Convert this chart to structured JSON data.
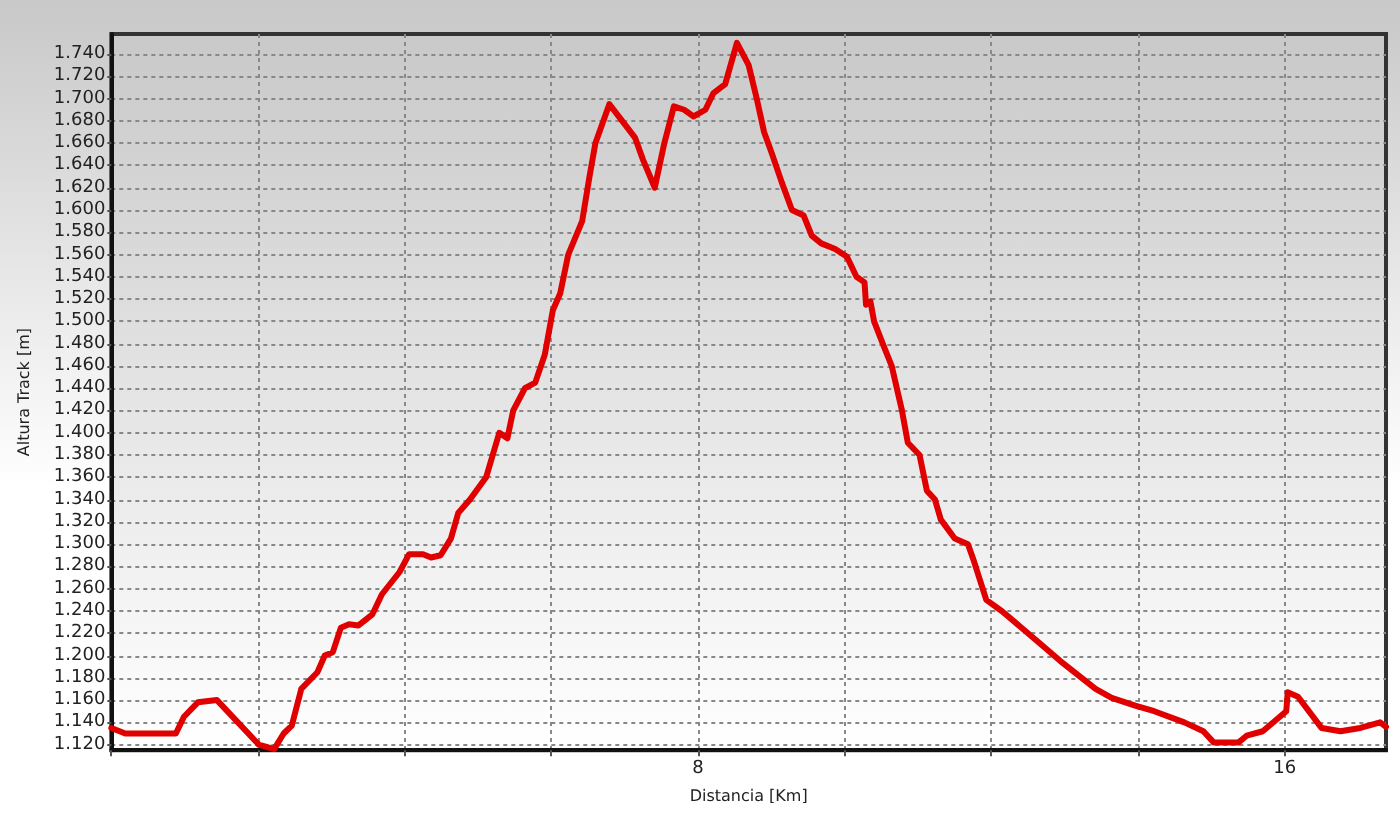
{
  "chart_data": {
    "type": "line",
    "xlabel": "Distancia [Km]",
    "ylabel": "Altura Track [m]",
    "x": [
      0,
      0.19,
      0.88,
      0.99,
      1.18,
      1.44,
      2.01,
      2.22,
      2.35,
      2.46,
      2.59,
      2.81,
      2.91,
      3.02,
      3.13,
      3.24,
      3.37,
      3.56,
      3.69,
      3.93,
      4.06,
      4.25,
      4.36,
      4.49,
      4.63,
      4.73,
      4.89,
      5.11,
      5.29,
      5.4,
      5.48,
      5.64,
      5.78,
      5.91,
      6.02,
      6.12,
      6.23,
      6.42,
      6.52,
      6.6,
      6.79,
      7.14,
      7.25,
      7.41,
      7.54,
      7.67,
      7.81,
      7.94,
      8.1,
      8.21,
      8.37,
      8.53,
      8.69,
      8.8,
      8.9,
      9.01,
      9.14,
      9.28,
      9.44,
      9.55,
      9.68,
      9.87,
      10.03,
      10.16,
      10.27,
      10.29,
      10.35,
      10.4,
      10.53,
      10.64,
      10.78,
      10.86,
      11.02,
      11.12,
      11.23,
      11.31,
      11.5,
      11.68,
      11.76,
      11.93,
      12.14,
      12.41,
      12.73,
      12.94,
      13.42,
      13.64,
      13.96,
      14.22,
      14.63,
      14.89,
      15.03,
      15.37,
      15.48,
      15.7,
      16.02,
      16.04,
      16.18,
      16.5,
      16.76,
      17.03,
      17.3,
      17.38
    ],
    "series": [
      {
        "color": "#e00000",
        "values": [
          1135,
          1130,
          1130,
          1145,
          1158,
          1160,
          1120,
          1116,
          1130,
          1137,
          1170,
          1185,
          1200,
          1203,
          1225,
          1228,
          1227,
          1237,
          1255,
          1275,
          1291,
          1291,
          1288,
          1290,
          1305,
          1328,
          1340,
          1360,
          1400,
          1395,
          1420,
          1440,
          1445,
          1470,
          1510,
          1525,
          1560,
          1590,
          1630,
          1660,
          1695,
          1665,
          1645,
          1620,
          1660,
          1693,
          1690,
          1684,
          1690,
          1705,
          1713,
          1750,
          1730,
          1700,
          1670,
          1650,
          1625,
          1600,
          1595,
          1577,
          1570,
          1565,
          1558,
          1540,
          1535,
          1515,
          1518,
          1500,
          1478,
          1460,
          1420,
          1391,
          1380,
          1348,
          1340,
          1322,
          1305,
          1300,
          1285,
          1250,
          1240,
          1225,
          1207,
          1195,
          1170,
          1162,
          1155,
          1150,
          1140,
          1132,
          1122,
          1122,
          1128,
          1132,
          1150,
          1167,
          1163,
          1135,
          1132,
          1135,
          1140,
          1136
        ]
      }
    ],
    "xlim": [
      0,
      17.38
    ],
    "xticks": [
      {
        "value": 0,
        "label": null
      },
      {
        "value": 2,
        "label": null
      },
      {
        "value": 4,
        "label": null
      },
      {
        "value": 6,
        "label": null
      },
      8,
      {
        "value": 10,
        "label": null
      },
      {
        "value": 12,
        "label": null
      },
      {
        "value": 14,
        "label": null
      },
      16
    ],
    "ylim": [
      1115,
      1758
    ],
    "yticks": [
      {
        "value": 1120,
        "label": "1.120"
      },
      {
        "value": 1140,
        "label": "1.140"
      },
      {
        "value": 1160,
        "label": "1.160"
      },
      {
        "value": 1180,
        "label": "1.180"
      },
      {
        "value": 1200,
        "label": "1.200"
      },
      {
        "value": 1220,
        "label": "1.220"
      },
      {
        "value": 1240,
        "label": "1.240"
      },
      {
        "value": 1260,
        "label": "1.260"
      },
      {
        "value": 1280,
        "label": "1.280"
      },
      {
        "value": 1300,
        "label": "1.300"
      },
      {
        "value": 1320,
        "label": "1.320"
      },
      {
        "value": 1340,
        "label": "1.340"
      },
      {
        "value": 1360,
        "label": "1.360"
      },
      {
        "value": 1380,
        "label": "1.380"
      },
      {
        "value": 1400,
        "label": "1.400"
      },
      {
        "value": 1420,
        "label": "1.420"
      },
      {
        "value": 1440,
        "label": "1.440"
      },
      {
        "value": 1460,
        "label": "1.460"
      },
      {
        "value": 1480,
        "label": "1.480"
      },
      {
        "value": 1500,
        "label": "1.500"
      },
      {
        "value": 1520,
        "label": "1.520"
      },
      {
        "value": 1540,
        "label": "1.540"
      },
      {
        "value": 1560,
        "label": "1.560"
      },
      {
        "value": 1580,
        "label": "1.580"
      },
      {
        "value": 1600,
        "label": "1.600"
      },
      {
        "value": 1620,
        "label": "1.620"
      },
      {
        "value": 1640,
        "label": "1.640"
      },
      {
        "value": 1660,
        "label": "1.660"
      },
      {
        "value": 1680,
        "label": "1.680"
      },
      {
        "value": 1700,
        "label": "1.700"
      },
      {
        "value": 1720,
        "label": "1.720"
      },
      {
        "value": 1740,
        "label": "1.740"
      }
    ],
    "grid": true,
    "marker": "none",
    "line_style": "solid"
  }
}
